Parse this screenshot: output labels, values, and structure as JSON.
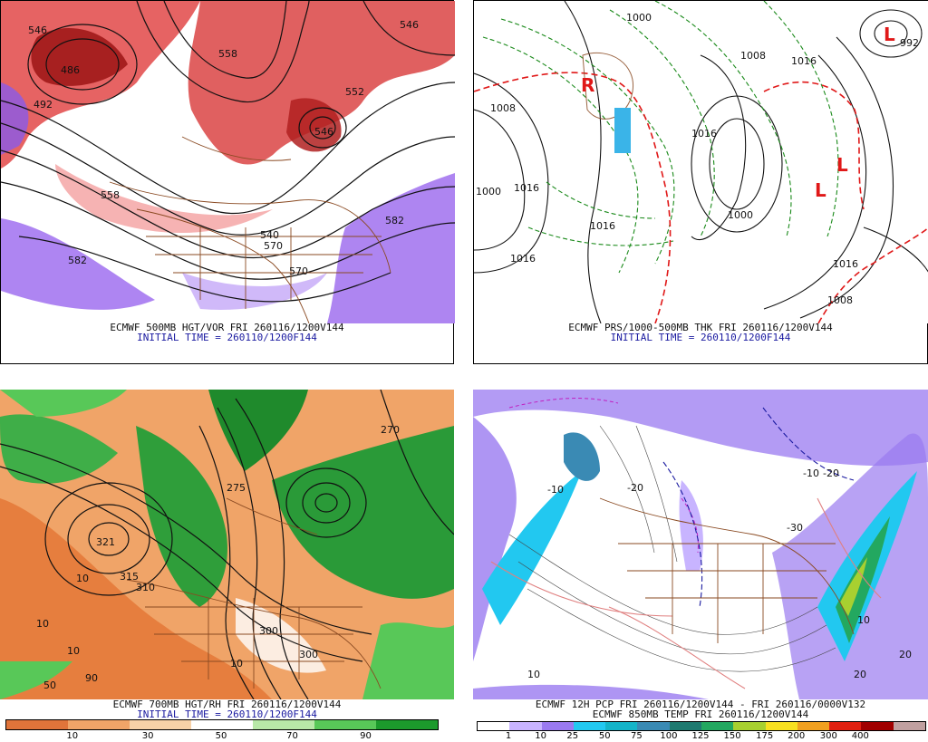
{
  "panels": [
    {
      "id": "tl",
      "caption1": "ECMWF 500MB HGT/VOR FRI 260116/1200V144",
      "caption2": "INITIAL TIME = 260110/1200F144",
      "labels": [
        "546",
        "486",
        "492",
        "552",
        "558",
        "582",
        "570",
        "570",
        "582",
        "546",
        "540",
        "558",
        "546"
      ]
    },
    {
      "id": "tr",
      "caption1": "ECMWF PRS/1000-500MB THK FRI 260116/1200V144",
      "caption2": "INITIAL TIME = 260110/1200F144",
      "labels": [
        "1000",
        "1008",
        "1016",
        "1016",
        "1000",
        "992",
        "1000",
        "1016",
        "1016",
        "1016",
        "1008",
        "1008",
        "1016"
      ]
    },
    {
      "id": "bl",
      "caption1": "ECMWF 700MB HGT/RH FRI 260116/1200V144",
      "caption2": "INITIAL TIME = 260110/1200F144",
      "labels": [
        "321",
        "315",
        "310",
        "300",
        "10",
        "10",
        "50",
        "90",
        "275",
        "270",
        "300",
        "10",
        "10"
      ]
    },
    {
      "id": "br",
      "caption1": "ECMWF 12H PCP FRI 260116/1200V144 - FRI 260116/0000V132",
      "caption2": "ECMWF 850MB TEMP FRI 260116/1200V144",
      "labels": [
        "-10",
        "-20",
        "-10",
        "-20",
        "10",
        "-30",
        "10",
        "20",
        "20"
      ]
    }
  ],
  "colorbars": {
    "rh": {
      "colors": [
        "#e0743a",
        "#f0a468",
        "#f8d2a8",
        "#ffffff",
        "#b8e8a8",
        "#58c858",
        "#1c9a2c"
      ],
      "ticks": [
        "10",
        "30",
        "50",
        "70",
        "90"
      ]
    },
    "pcp": {
      "colors": [
        "#ffffff",
        "#c8b4ff",
        "#9a7af0",
        "#22c8f0",
        "#14b4c8",
        "#3a8ab4",
        "#1e7a70",
        "#23a860",
        "#a8d030",
        "#f8e020",
        "#f0a020",
        "#e02010",
        "#a00000",
        "#c0a0a0"
      ],
      "ticks": [
        "1",
        "10",
        "25",
        "50",
        "75",
        "100",
        "125",
        "150",
        "175",
        "200",
        "300",
        "400"
      ]
    }
  }
}
